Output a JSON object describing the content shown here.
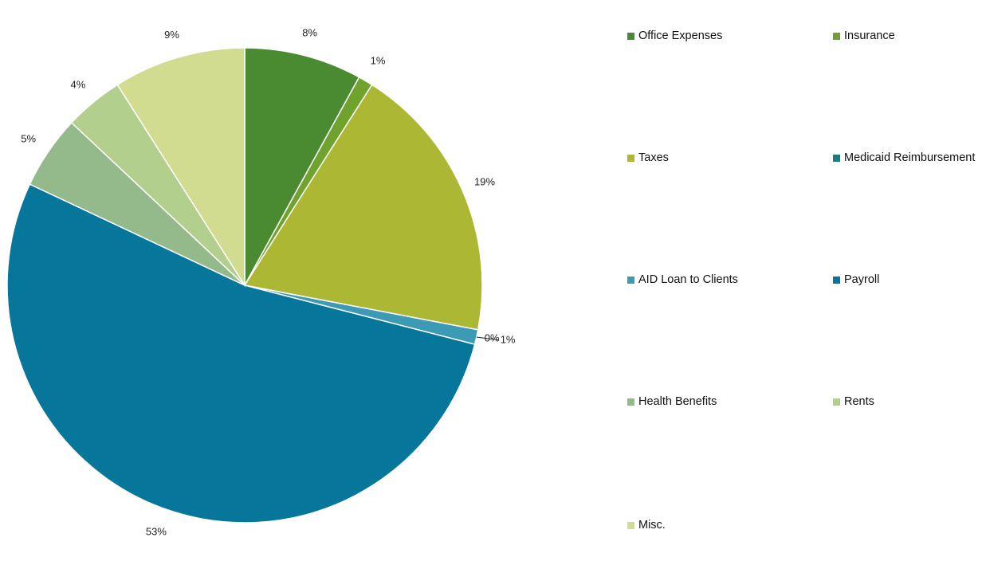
{
  "chart_data": {
    "type": "pie",
    "title": "",
    "legend_position": "right",
    "slices": [
      {
        "label": "Office Expenses",
        "value": 8,
        "display": "8%",
        "color": "#4a8a30"
      },
      {
        "label": "Insurance",
        "value": 1,
        "display": "1%",
        "color": "#6fa32e"
      },
      {
        "label": "Taxes",
        "value": 19,
        "display": "19%",
        "color": "#acb734"
      },
      {
        "label": "Medicaid Reimbursement",
        "value": 0,
        "display": "0%",
        "color": "#1a7f77"
      },
      {
        "label": "AID Loan to Clients",
        "value": 1,
        "display": "1%",
        "color": "#3d9ab4"
      },
      {
        "label": "Payroll",
        "value": 53,
        "display": "53%",
        "color": "#06779a"
      },
      {
        "label": "Health Benefits",
        "value": 5,
        "display": "5%",
        "color": "#94b98a"
      },
      {
        "label": "Rents",
        "value": 4,
        "display": "4%",
        "color": "#b3cf8e"
      },
      {
        "label": "Misc.",
        "value": 9,
        "display": "9%",
        "color": "#d2dc90"
      }
    ]
  }
}
